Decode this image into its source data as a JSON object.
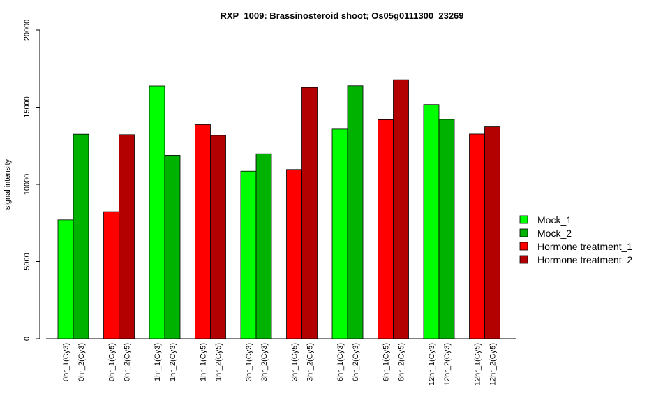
{
  "chart_data": {
    "type": "bar",
    "title": "RXP_1009: Brassinosteroid shoot; Os05g0111300_23269",
    "ylabel": "signal intensity",
    "xlabel": "",
    "ylim": [
      0,
      20000
    ],
    "yticks": [
      0,
      5000,
      10000,
      15000,
      20000
    ],
    "grid": false,
    "legend_position": "right",
    "bars": [
      {
        "label": "0hr_1(Cy3)",
        "value": 7700,
        "series": "Mock_1"
      },
      {
        "label": "0hr_2(Cy3)",
        "value": 13250,
        "series": "Mock_2"
      },
      {
        "label": "0hr_1(Cy5)",
        "value": 8230,
        "series": "Hormone treatment_1"
      },
      {
        "label": "0hr_2(Cy5)",
        "value": 13220,
        "series": "Hormone treatment_2"
      },
      {
        "label": "1hr_1(Cy3)",
        "value": 16380,
        "series": "Mock_1"
      },
      {
        "label": "1hr_2(Cy3)",
        "value": 11880,
        "series": "Mock_2"
      },
      {
        "label": "1hr_1(Cy5)",
        "value": 13870,
        "series": "Hormone treatment_1"
      },
      {
        "label": "1hr_2(Cy5)",
        "value": 13170,
        "series": "Hormone treatment_2"
      },
      {
        "label": "3hr_1(Cy3)",
        "value": 10850,
        "series": "Mock_1"
      },
      {
        "label": "3hr_2(Cy3)",
        "value": 11980,
        "series": "Mock_2"
      },
      {
        "label": "3hr_1(Cy5)",
        "value": 10960,
        "series": "Hormone treatment_1"
      },
      {
        "label": "3hr_2(Cy5)",
        "value": 16280,
        "series": "Hormone treatment_2"
      },
      {
        "label": "6hr_1(Cy3)",
        "value": 13580,
        "series": "Mock_1"
      },
      {
        "label": "6hr_2(Cy3)",
        "value": 16390,
        "series": "Mock_2"
      },
      {
        "label": "6hr_1(Cy5)",
        "value": 14190,
        "series": "Hormone treatment_1"
      },
      {
        "label": "6hr_2(Cy5)",
        "value": 16780,
        "series": "Hormone treatment_2"
      },
      {
        "label": "12hr_1(Cy3)",
        "value": 15170,
        "series": "Mock_1"
      },
      {
        "label": "12hr_2(Cy3)",
        "value": 14210,
        "series": "Mock_2"
      },
      {
        "label": "12hr_1(Cy5)",
        "value": 13260,
        "series": "Hormone treatment_1"
      },
      {
        "label": "12hr_2(Cy5)",
        "value": 13730,
        "series": "Hormone treatment_2"
      }
    ],
    "legend": [
      {
        "name": "Mock_1",
        "color": "#00ff00"
      },
      {
        "name": "Mock_2",
        "color": "#00b200"
      },
      {
        "name": "Hormone treatment_1",
        "color": "#ff0000"
      },
      {
        "name": "Hormone treatment_2",
        "color": "#b30000"
      }
    ]
  }
}
